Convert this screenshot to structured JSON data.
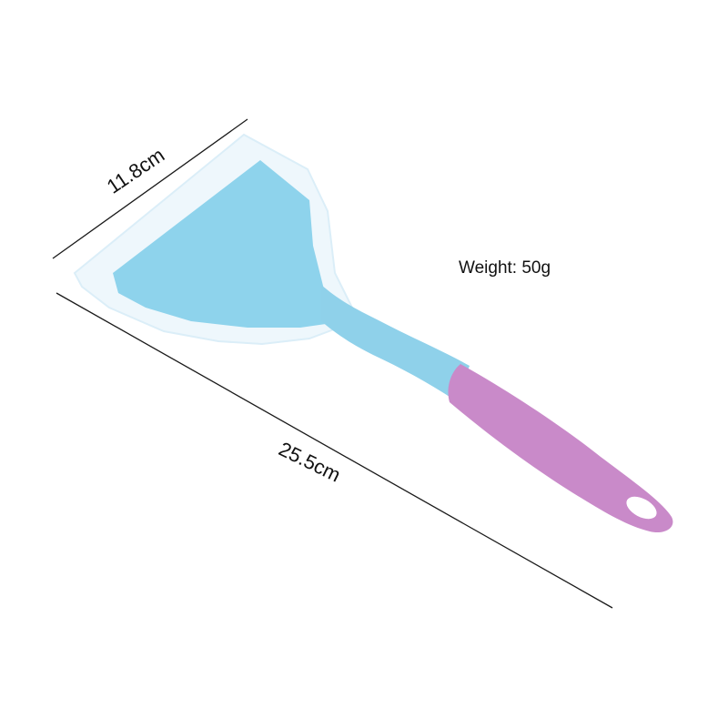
{
  "product": {
    "name": "silicone-spatula-turner",
    "colors": {
      "head": "#8ed3ec",
      "head_edge": "#e8f4fb",
      "neck": "#8fd1ea",
      "grip": "#c98ac9",
      "background": "#ffffff",
      "lines": "#1a1a1a"
    }
  },
  "dimensions": {
    "width_label": "11.8cm",
    "length_label": "25.5cm"
  },
  "specs": {
    "weight_label": "Weight: 50g"
  }
}
